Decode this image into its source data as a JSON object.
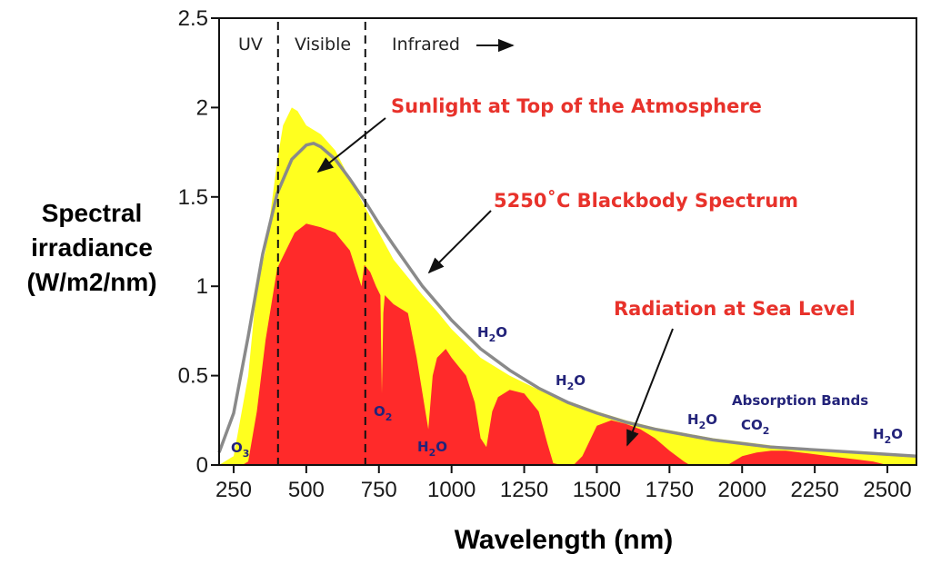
{
  "chart_data": {
    "type": "area",
    "title": "",
    "xlabel": "Wavelength (nm)",
    "ylabel_lines": [
      "Spectral",
      "irradiance",
      "(W/m2/nm)"
    ],
    "xlim": [
      200,
      2600
    ],
    "ylim": [
      0,
      2.5
    ],
    "xticks": [
      250,
      500,
      750,
      1000,
      1250,
      1500,
      1750,
      2000,
      2250,
      2500
    ],
    "yticks": [
      0,
      0.5,
      1,
      1.5,
      2,
      2.5
    ],
    "ytick_labels": [
      "0",
      "0.5",
      "1",
      "1.5",
      "2",
      "2.5"
    ],
    "grid": false,
    "series": [
      {
        "name": "Sunlight at Top of the Atmosphere",
        "kind": "area",
        "color": "#ffff1f",
        "x": [
          200,
          250,
          300,
          330,
          360,
          400,
          420,
          450,
          470,
          500,
          550,
          600,
          650,
          700,
          750,
          800,
          850,
          900,
          950,
          1000,
          1100,
          1200,
          1300,
          1400,
          1500,
          1600,
          1700,
          1800,
          1900,
          2000,
          2100,
          2200,
          2300,
          2400,
          2500,
          2600
        ],
        "y": [
          0.0,
          0.05,
          0.5,
          1.0,
          1.2,
          1.7,
          1.9,
          2.0,
          1.98,
          1.9,
          1.85,
          1.76,
          1.6,
          1.45,
          1.3,
          1.15,
          1.05,
          0.95,
          0.86,
          0.76,
          0.6,
          0.5,
          0.42,
          0.36,
          0.3,
          0.25,
          0.21,
          0.18,
          0.15,
          0.13,
          0.11,
          0.09,
          0.08,
          0.07,
          0.06,
          0.05
        ]
      },
      {
        "name": "Radiation at Sea Level",
        "kind": "area",
        "color": "#ff2a2a",
        "x": [
          280,
          300,
          330,
          360,
          400,
          430,
          460,
          500,
          550,
          600,
          650,
          680,
          690,
          700,
          720,
          740,
          755,
          760,
          765,
          770,
          800,
          850,
          880,
          900,
          920,
          935,
          950,
          980,
          1000,
          1050,
          1080,
          1100,
          1120,
          1140,
          1160,
          1200,
          1250,
          1300,
          1330,
          1350,
          1380,
          1400,
          1420,
          1450,
          1500,
          1550,
          1600,
          1650,
          1700,
          1750,
          1800,
          1820,
          1850,
          1900,
          1950,
          2000,
          2050,
          2100,
          2150,
          2200,
          2300,
          2400,
          2450,
          2500
        ],
        "y": [
          0.0,
          0.02,
          0.3,
          0.7,
          1.1,
          1.2,
          1.3,
          1.35,
          1.33,
          1.3,
          1.2,
          1.05,
          1.0,
          1.12,
          1.08,
          1.0,
          0.95,
          0.4,
          0.85,
          0.95,
          0.9,
          0.85,
          0.6,
          0.4,
          0.2,
          0.5,
          0.6,
          0.65,
          0.6,
          0.5,
          0.35,
          0.15,
          0.1,
          0.3,
          0.38,
          0.42,
          0.4,
          0.3,
          0.12,
          0.01,
          0.0,
          0.0,
          0.0,
          0.05,
          0.22,
          0.25,
          0.23,
          0.2,
          0.15,
          0.08,
          0.02,
          0.0,
          0.0,
          0.0,
          0.0,
          0.05,
          0.07,
          0.08,
          0.08,
          0.07,
          0.05,
          0.03,
          0.02,
          0.0
        ]
      },
      {
        "name": "5250˚C Blackbody Spectrum",
        "kind": "line",
        "color": "#8a8a8a",
        "x": [
          200,
          250,
          300,
          350,
          400,
          450,
          500,
          525,
          550,
          600,
          650,
          700,
          750,
          800,
          900,
          1000,
          1100,
          1200,
          1300,
          1400,
          1500,
          1600,
          1700,
          1800,
          1900,
          2000,
          2100,
          2200,
          2300,
          2400,
          2500,
          2600
        ],
        "y": [
          0.07,
          0.29,
          0.72,
          1.18,
          1.52,
          1.71,
          1.79,
          1.8,
          1.78,
          1.71,
          1.6,
          1.48,
          1.35,
          1.23,
          1.0,
          0.81,
          0.65,
          0.53,
          0.43,
          0.35,
          0.29,
          0.24,
          0.2,
          0.17,
          0.14,
          0.12,
          0.1,
          0.09,
          0.08,
          0.07,
          0.06,
          0.05
        ]
      }
    ],
    "region_boundaries": [
      400,
      700
    ],
    "regions": [
      "UV",
      "Visible",
      "Infrared"
    ],
    "annotations": {
      "top_atmosphere": "Sunlight at Top of the Atmosphere",
      "blackbody": "5250˚C Blackbody Spectrum",
      "sea_level": "Radiation at Sea Level",
      "absorption_bands": "Absorption Bands"
    },
    "absorption_labels": [
      {
        "base": "O",
        "sub": "3"
      },
      {
        "base": "O",
        "sub": "2"
      },
      {
        "base": "H",
        "sub": "2",
        "rest": "O"
      },
      {
        "base": "H",
        "sub": "2",
        "rest": "O"
      },
      {
        "base": "H",
        "sub": "2",
        "rest": "O"
      },
      {
        "base": "H",
        "sub": "2",
        "rest": "O"
      },
      {
        "base": "CO",
        "sub": "2"
      },
      {
        "base": "H",
        "sub": "2",
        "rest": "O"
      }
    ],
    "colors": {
      "sunlight_fill": "#ffff1f",
      "sea_level_fill": "#ff2a2a",
      "blackbody_line": "#8a8a8a",
      "annotation_red": "#e8322b",
      "absorption_blue": "#23237a"
    }
  }
}
